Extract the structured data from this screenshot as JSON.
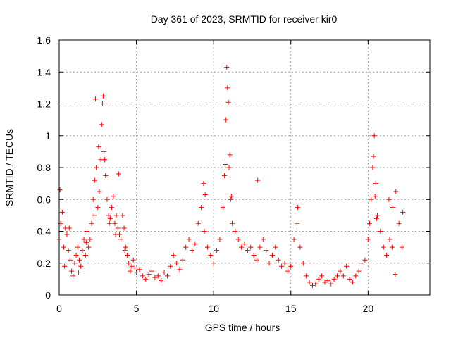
{
  "chart_data": {
    "type": "scatter",
    "title": "Day 361 of 2023, SRMTID for receiver kir0",
    "xlabel": "GPS time / hours",
    "ylabel": "SRMTID / TECUs",
    "xlim": [
      0,
      24
    ],
    "ylim": [
      0,
      1.6
    ],
    "xticks": [
      0,
      5,
      10,
      15,
      20
    ],
    "yticks": [
      0,
      0.2,
      0.4,
      0.6,
      0.8,
      1,
      1.2,
      1.4,
      1.6
    ],
    "x_tick_labels": [
      "0",
      "5",
      "10",
      "15",
      "20"
    ],
    "y_tick_labels": [
      "0",
      "0.2",
      "0.4",
      "0.6",
      "0.8",
      "1",
      "1.2",
      "1.4",
      "1.6"
    ],
    "grid": true,
    "marker": "+",
    "series_color": "#ff0000",
    "series": [
      {
        "name": "SRMTID",
        "x": [
          0.0,
          0.1,
          0.2,
          0.3,
          0.4,
          0.5,
          0.6,
          0.7,
          0.8,
          0.9,
          1.0,
          1.1,
          1.2,
          1.3,
          1.4,
          1.5,
          1.6,
          1.7,
          1.8,
          1.9,
          2.0,
          2.1,
          2.2,
          2.3,
          2.4,
          2.5,
          2.6,
          2.7,
          2.8,
          2.9,
          3.0,
          3.1,
          3.2,
          3.3,
          3.4,
          3.5,
          3.6,
          3.7,
          3.8,
          3.9,
          4.0,
          4.1,
          4.2,
          4.3,
          4.4,
          4.5,
          4.6,
          4.7,
          4.8,
          4.9,
          5.0,
          5.2,
          5.4,
          5.6,
          5.8,
          6.0,
          6.2,
          6.4,
          6.6,
          6.8,
          7.0,
          7.2,
          7.4,
          7.6,
          7.8,
          8.0,
          8.2,
          8.4,
          8.6,
          8.8,
          9.0,
          9.2,
          9.4,
          9.6,
          9.8,
          10.0,
          10.2,
          10.4,
          10.6,
          10.7,
          10.8,
          10.9,
          11.0,
          11.1,
          11.2,
          11.4,
          11.6,
          11.8,
          12.0,
          12.2,
          12.4,
          12.6,
          12.8,
          13.0,
          13.2,
          13.4,
          13.6,
          13.8,
          14.0,
          14.2,
          14.4,
          14.6,
          14.8,
          15.0,
          15.2,
          15.4,
          15.6,
          15.8,
          16.0,
          16.2,
          16.4,
          16.6,
          16.8,
          17.0,
          17.2,
          17.4,
          17.6,
          17.8,
          18.0,
          18.2,
          18.4,
          18.6,
          18.8,
          19.0,
          19.2,
          19.4,
          19.6,
          19.8,
          20.0,
          20.1,
          20.2,
          20.3,
          20.4,
          20.5,
          20.6,
          20.8,
          21.0,
          21.2,
          21.4,
          21.6,
          21.8,
          22.0,
          22.2,
          0.05,
          0.35,
          0.65,
          1.25,
          1.75,
          2.25,
          2.35,
          2.55,
          2.75,
          2.85,
          2.95,
          3.25,
          3.65,
          3.85,
          4.25,
          9.35,
          9.45,
          10.75,
          10.85,
          10.95,
          11.05,
          11.15,
          12.85,
          15.45,
          20.35,
          20.45,
          20.55,
          21.35,
          21.55,
          21.75,
          22.25
        ],
        "y": [
          0.35,
          0.45,
          0.52,
          0.3,
          0.42,
          0.38,
          0.28,
          0.22,
          0.15,
          0.12,
          0.2,
          0.25,
          0.3,
          0.22,
          0.18,
          0.28,
          0.35,
          0.25,
          0.4,
          0.3,
          0.35,
          0.45,
          0.6,
          0.72,
          0.8,
          0.55,
          0.65,
          0.85,
          1.2,
          0.9,
          0.75,
          0.6,
          0.5,
          0.48,
          0.55,
          0.62,
          0.45,
          0.5,
          0.42,
          0.38,
          0.35,
          0.5,
          0.42,
          0.3,
          0.25,
          0.2,
          0.15,
          0.18,
          0.22,
          0.17,
          0.14,
          0.16,
          0.12,
          0.1,
          0.13,
          0.15,
          0.11,
          0.12,
          0.09,
          0.14,
          0.12,
          0.18,
          0.25,
          0.2,
          0.16,
          0.22,
          0.3,
          0.35,
          0.28,
          0.32,
          0.45,
          0.55,
          0.4,
          0.3,
          0.25,
          0.2,
          0.28,
          0.35,
          0.55,
          0.75,
          1.1,
          1.3,
          0.8,
          0.6,
          0.45,
          0.4,
          0.35,
          0.3,
          0.32,
          0.28,
          0.3,
          0.25,
          0.22,
          0.3,
          0.35,
          0.28,
          0.2,
          0.25,
          0.3,
          0.22,
          0.18,
          0.2,
          0.15,
          0.18,
          0.35,
          0.45,
          0.3,
          0.2,
          0.12,
          0.08,
          0.06,
          0.07,
          0.1,
          0.12,
          0.08,
          0.09,
          0.07,
          0.1,
          0.12,
          0.15,
          0.12,
          0.18,
          0.1,
          0.08,
          0.12,
          0.15,
          0.2,
          0.22,
          0.35,
          0.45,
          0.6,
          0.8,
          1.0,
          0.7,
          0.5,
          0.4,
          0.3,
          0.25,
          0.35,
          0.55,
          0.65,
          0.45,
          0.3,
          0.66,
          0.18,
          0.42,
          0.14,
          0.33,
          0.5,
          1.23,
          0.93,
          1.07,
          1.25,
          0.85,
          0.45,
          0.38,
          0.76,
          0.28,
          0.7,
          0.63,
          0.82,
          1.43,
          1.21,
          0.88,
          0.62,
          0.72,
          0.55,
          0.87,
          0.62,
          0.48,
          0.6,
          0.3,
          0.13,
          0.52
        ]
      }
    ]
  }
}
